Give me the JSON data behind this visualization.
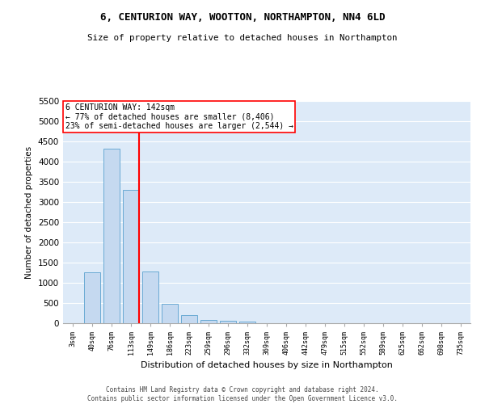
{
  "title1": "6, CENTURION WAY, WOOTTON, NORTHAMPTON, NN4 6LD",
  "title2": "Size of property relative to detached houses in Northampton",
  "xlabel": "Distribution of detached houses by size in Northampton",
  "ylabel": "Number of detached properties",
  "categories": [
    "3sqm",
    "40sqm",
    "76sqm",
    "113sqm",
    "149sqm",
    "186sqm",
    "223sqm",
    "259sqm",
    "296sqm",
    "332sqm",
    "369sqm",
    "406sqm",
    "442sqm",
    "479sqm",
    "515sqm",
    "552sqm",
    "589sqm",
    "625sqm",
    "662sqm",
    "698sqm",
    "735sqm"
  ],
  "bar_values": [
    0,
    1270,
    4330,
    3300,
    1280,
    490,
    210,
    90,
    55,
    40,
    0,
    0,
    0,
    0,
    0,
    0,
    0,
    0,
    0,
    0,
    0
  ],
  "bar_color": "#c5d9f0",
  "bar_edge_color": "#6aaad4",
  "vline_label": "6 CENTURION WAY: 142sqm",
  "annotation_line1": "← 77% of detached houses are smaller (8,406)",
  "annotation_line2": "23% of semi-detached houses are larger (2,544) →",
  "vline_color": "red",
  "ylim": [
    0,
    5500
  ],
  "yticks": [
    0,
    500,
    1000,
    1500,
    2000,
    2500,
    3000,
    3500,
    4000,
    4500,
    5000,
    5500
  ],
  "bg_color": "#ddeaf8",
  "grid_color": "#ffffff",
  "footer1": "Contains HM Land Registry data © Crown copyright and database right 2024.",
  "footer2": "Contains public sector information licensed under the Open Government Licence v3.0."
}
